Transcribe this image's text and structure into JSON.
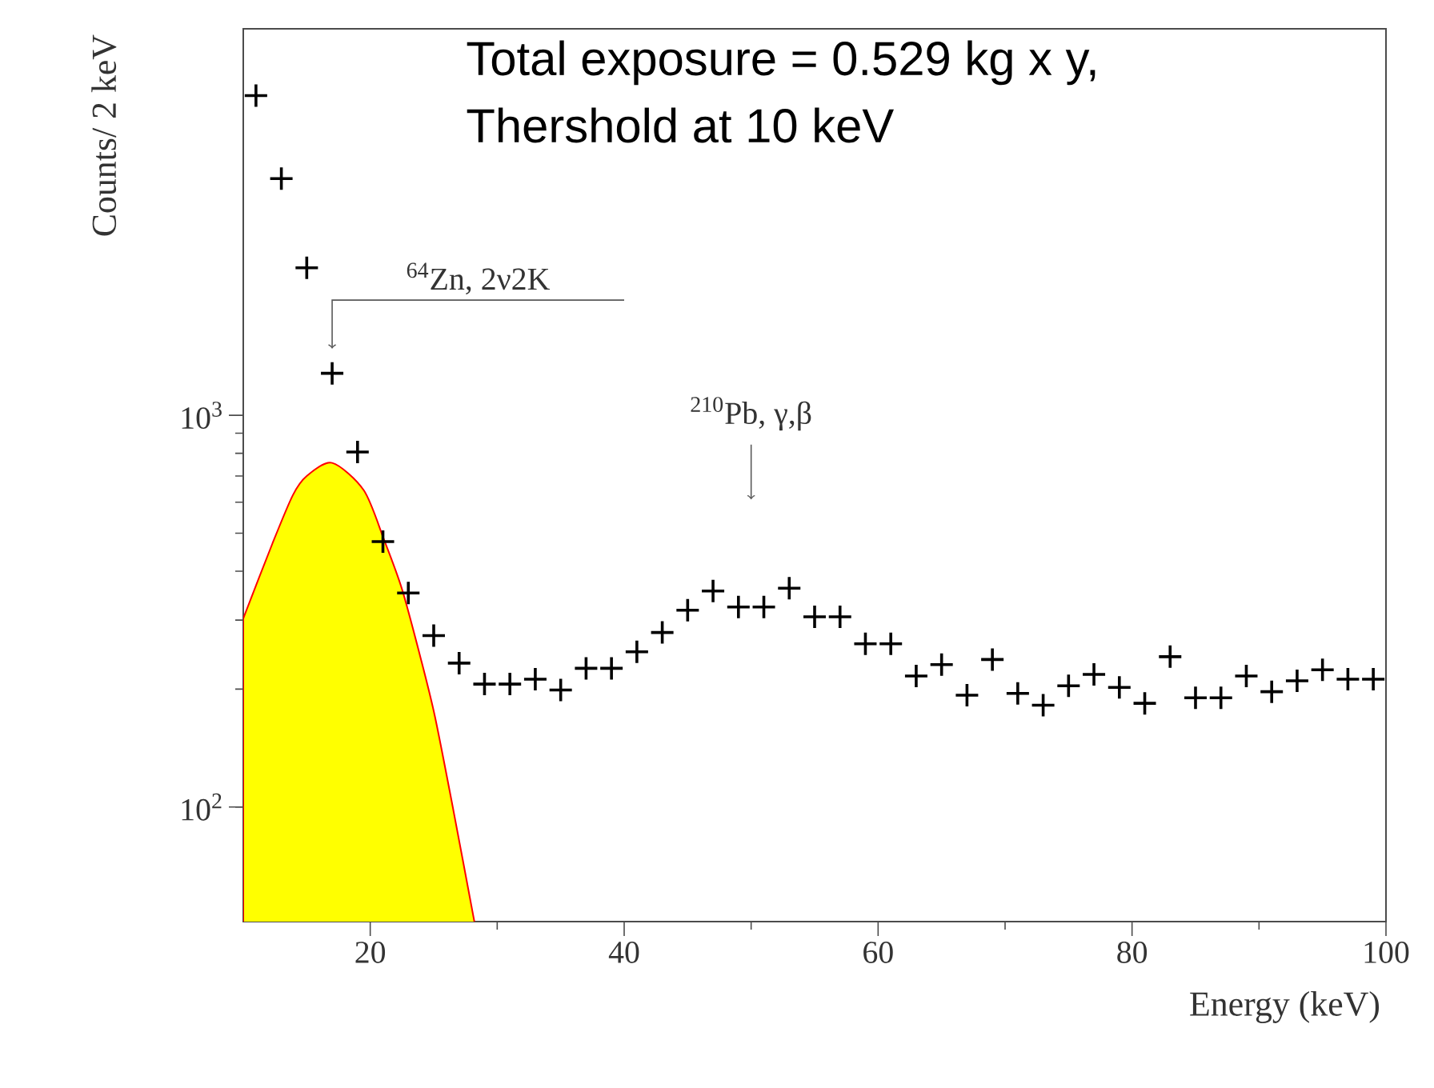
{
  "chart_data": {
    "type": "scatter",
    "xlabel": "Energy (keV)",
    "ylabel": "Counts/ 2 keV",
    "xlim": [
      10,
      100
    ],
    "ylim": [
      51,
      9700
    ],
    "log": "y",
    "xticks": [
      20,
      40,
      60,
      80,
      100
    ],
    "yticks": [
      {
        "value": 100,
        "label": "10$^{2}$"
      },
      {
        "value": 1000,
        "label": "10$^{3}$"
      }
    ],
    "series": [
      {
        "type": "area",
        "color": "#ffff00",
        "x": [
          10,
          12.3,
          13.9,
          15,
          17,
          19.5,
          21.1,
          22.5,
          24,
          25.1,
          26.5,
          28.2
        ],
        "values": [
          303,
          471,
          625,
          700,
          756,
          643,
          480,
          360,
          238,
          170,
          100,
          51
        ]
      },
      {
        "marker": "cross",
        "color": "#000000",
        "x": [
          11,
          13,
          15,
          17,
          19,
          21,
          23,
          25,
          27,
          29,
          31,
          33,
          35,
          37,
          39,
          41,
          43,
          45,
          47,
          49,
          51,
          53,
          55,
          57,
          59,
          61,
          63,
          65,
          67,
          69,
          71,
          73,
          75,
          77,
          79,
          81,
          83,
          85,
          87,
          89,
          91,
          93,
          95,
          97,
          99
        ],
        "values": [
          6550,
          4020,
          2380,
          1280,
          806,
          476,
          352,
          274,
          233,
          206,
          206,
          212,
          199,
          226,
          226,
          249,
          279,
          318,
          356,
          324,
          324,
          362,
          306,
          306,
          261,
          261,
          216,
          231,
          193,
          238,
          195,
          182,
          204,
          218,
          202,
          184,
          242,
          190,
          190,
          216,
          197,
          210,
          224,
          212,
          212
        ]
      }
    ],
    "annotations": [
      "Total exposure = 0.529 kg x y,",
      "Thershold at 10 keV",
      {
        "text": "$^{64}$Zn, 2ν2K",
        "x": 17,
        "y": 1480
      },
      {
        "text": "$^{210}$Pb, γ,β",
        "x": 50,
        "y": 610
      }
    ]
  }
}
